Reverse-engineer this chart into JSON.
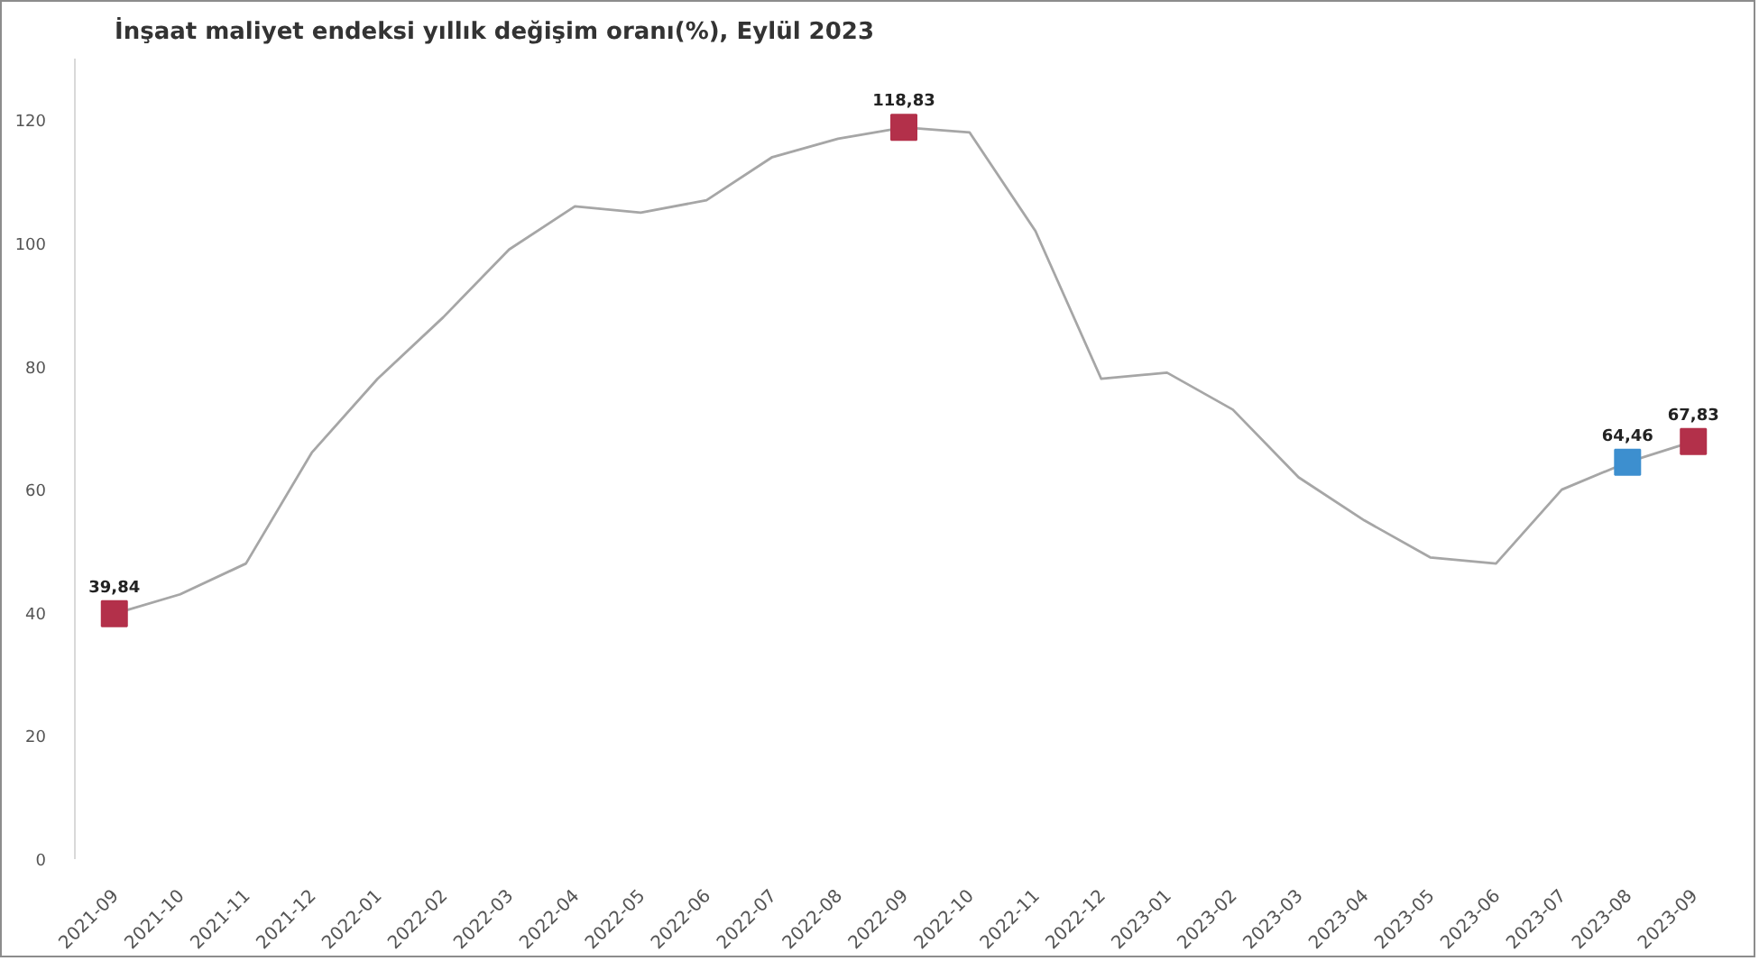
{
  "chart_data": {
    "type": "line",
    "title": "İnşaat maliyet endeksi yıllık değişim oranı(%), Eylül 2023",
    "categories": [
      "2021-09",
      "2021-10",
      "2021-11",
      "2021-12",
      "2022-01",
      "2022-02",
      "2022-03",
      "2022-04",
      "2022-05",
      "2022-06",
      "2022-07",
      "2022-08",
      "2022-09",
      "2022-10",
      "2022-11",
      "2022-12",
      "2023-01",
      "2023-02",
      "2023-03",
      "2023-04",
      "2023-05",
      "2023-06",
      "2023-07",
      "2023-08",
      "2023-09"
    ],
    "ylim": [
      0,
      130
    ],
    "yticks": [
      0,
      20,
      40,
      60,
      80,
      100,
      120
    ],
    "grid": false,
    "series": [
      {
        "color": "#a6a6a6",
        "marker": "none",
        "values": [
          39.84,
          43,
          48,
          66,
          78,
          88,
          99,
          106,
          105,
          107,
          114,
          117,
          118.83,
          118,
          102,
          78,
          79,
          73,
          62,
          55,
          49,
          48,
          60,
          64.46,
          67.83
        ]
      },
      {
        "type": "scatter",
        "marker": "square",
        "colors": [
          "#b3304a",
          null,
          null,
          null,
          null,
          null,
          null,
          null,
          null,
          null,
          null,
          null,
          "#b3304a",
          null,
          null,
          null,
          null,
          null,
          null,
          null,
          null,
          null,
          null,
          "#3d8fcf",
          "#b3304a"
        ],
        "values": [
          39.84,
          null,
          null,
          null,
          null,
          null,
          null,
          null,
          null,
          null,
          null,
          null,
          118.83,
          null,
          null,
          null,
          null,
          null,
          null,
          null,
          null,
          null,
          null,
          64.46,
          67.83
        ],
        "value_labels": [
          "39,84",
          null,
          null,
          null,
          null,
          null,
          null,
          null,
          null,
          null,
          null,
          null,
          "118,83",
          null,
          null,
          null,
          null,
          null,
          null,
          null,
          null,
          null,
          null,
          "64,46",
          "67,83"
        ]
      }
    ]
  }
}
